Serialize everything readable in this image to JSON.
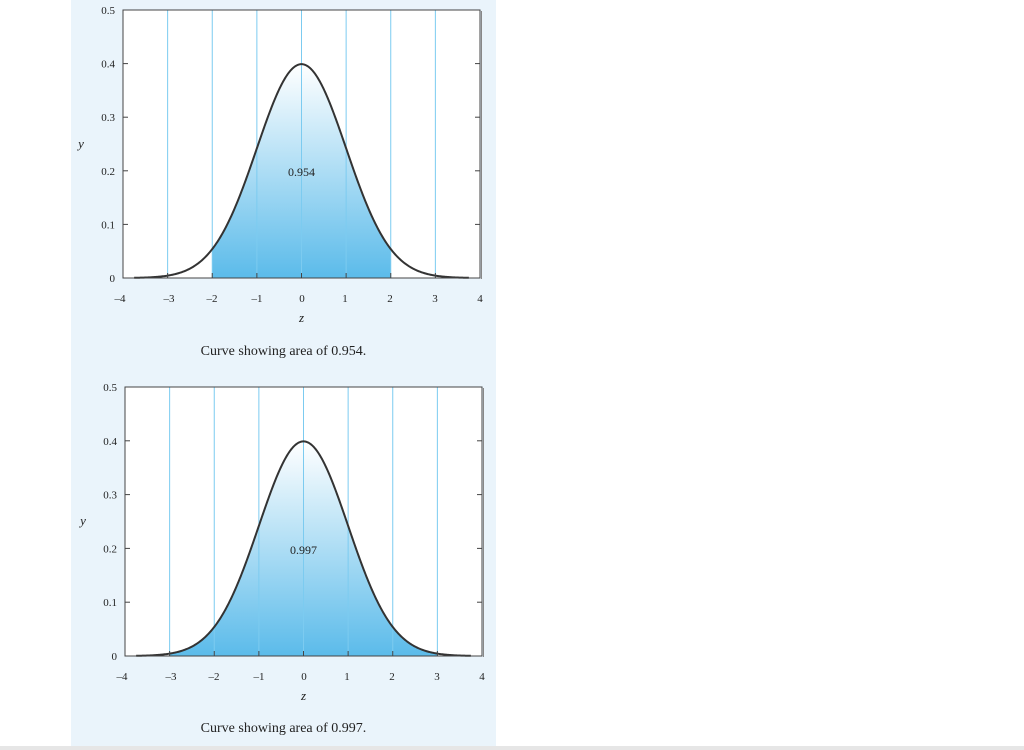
{
  "colors": {
    "panel_background": "#eaf4fb",
    "fill_top": "#ffffff",
    "fill_bottom": "#5bbbea",
    "grid_line": "#7ccbf0",
    "curve": "#333333"
  },
  "chart_data": [
    {
      "type": "area",
      "function": "standard-normal-density",
      "x_ticks": [
        "–4",
        "–3",
        "–2",
        "–1",
        "0",
        "1",
        "2",
        "3",
        "4"
      ],
      "y_ticks": [
        "0",
        "0.1",
        "0.2",
        "0.3",
        "0.4",
        "0.5"
      ],
      "xlabel": "z",
      "ylabel": "y",
      "xlim": [
        -4,
        4
      ],
      "ylim": [
        0,
        0.5
      ],
      "vertical_grid": [
        -3,
        -2,
        -1,
        0,
        1,
        2,
        3
      ],
      "shaded_range": [
        -2,
        2
      ],
      "area_label": "0.954",
      "area_label_at": [
        0,
        0.19
      ],
      "caption": "Curve showing area of 0.954."
    },
    {
      "type": "area",
      "function": "standard-normal-density",
      "x_ticks": [
        "–4",
        "–3",
        "–2",
        "–1",
        "0",
        "1",
        "2",
        "3",
        "4"
      ],
      "y_ticks": [
        "0",
        "0.1",
        "0.2",
        "0.3",
        "0.4",
        "0.5"
      ],
      "xlabel": "z",
      "ylabel": "y",
      "xlim": [
        -4,
        4
      ],
      "ylim": [
        0,
        0.5
      ],
      "vertical_grid": [
        -3,
        -2,
        -1,
        0,
        1,
        2,
        3
      ],
      "shaded_range": [
        -3,
        3
      ],
      "area_label": "0.997",
      "area_label_at": [
        0,
        0.19
      ],
      "caption": "Curve showing area of 0.997."
    }
  ]
}
